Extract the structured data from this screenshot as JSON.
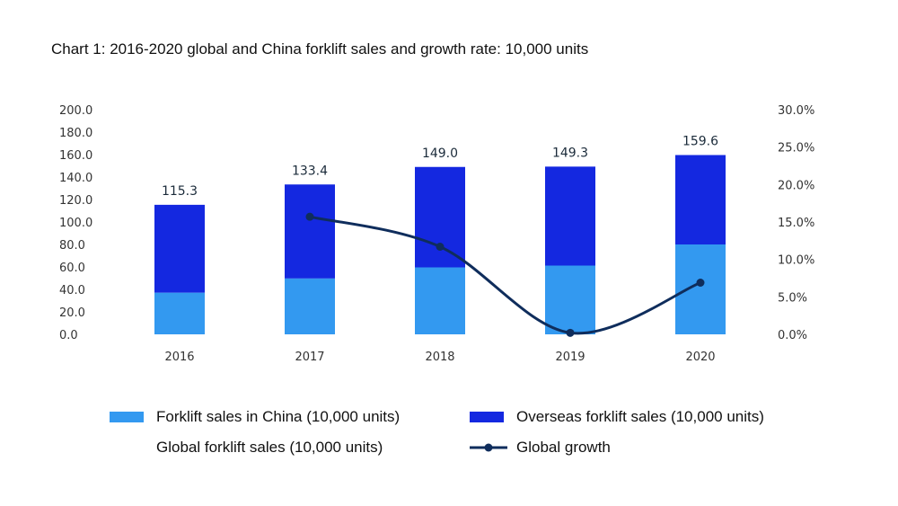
{
  "chart_data": {
    "type": "bar",
    "title": "Chart 1: 2016-2020 global and China forklift sales and growth rate: 10,000 units",
    "categories": [
      "2016",
      "2017",
      "2018",
      "2019",
      "2020"
    ],
    "series": [
      {
        "name": "Forklift sales in China (10,000 units)",
        "type": "bar",
        "stacked": true,
        "color": "#3399f0",
        "values": [
          37.0,
          49.7,
          59.6,
          61.2,
          80.0
        ]
      },
      {
        "name": "Overseas forklift sales (10,000 units)",
        "type": "bar",
        "stacked": true,
        "color": "#1428e0",
        "values": [
          78.3,
          83.7,
          89.4,
          88.1,
          79.6
        ]
      },
      {
        "name": "Global forklift sales (10,000 units)",
        "type": "label",
        "values": [
          115.3,
          133.4,
          149.0,
          149.3,
          159.6
        ],
        "value_labels": [
          "115.3",
          "133.4",
          "149.0",
          "149.3",
          "159.6"
        ]
      },
      {
        "name": "Global growth",
        "type": "line",
        "axis": "right",
        "color": "#0f2d5c",
        "values": [
          null,
          15.7,
          11.7,
          0.2,
          6.9
        ]
      }
    ],
    "y_left": {
      "ylim": [
        0,
        200
      ],
      "ticks": [
        "200.0",
        "180.0",
        "160.0",
        "140.0",
        "120.0",
        "100.0",
        "80.0",
        "60.0",
        "40.0",
        "20.0",
        "0.0"
      ]
    },
    "y_right": {
      "ylim": [
        0,
        30
      ],
      "ticks": [
        "30.0%",
        "25.0%",
        "20.0%",
        "15.0%",
        "10.0%",
        "5.0%",
        "0.0%"
      ]
    },
    "grid": false,
    "legend": "bottom"
  }
}
